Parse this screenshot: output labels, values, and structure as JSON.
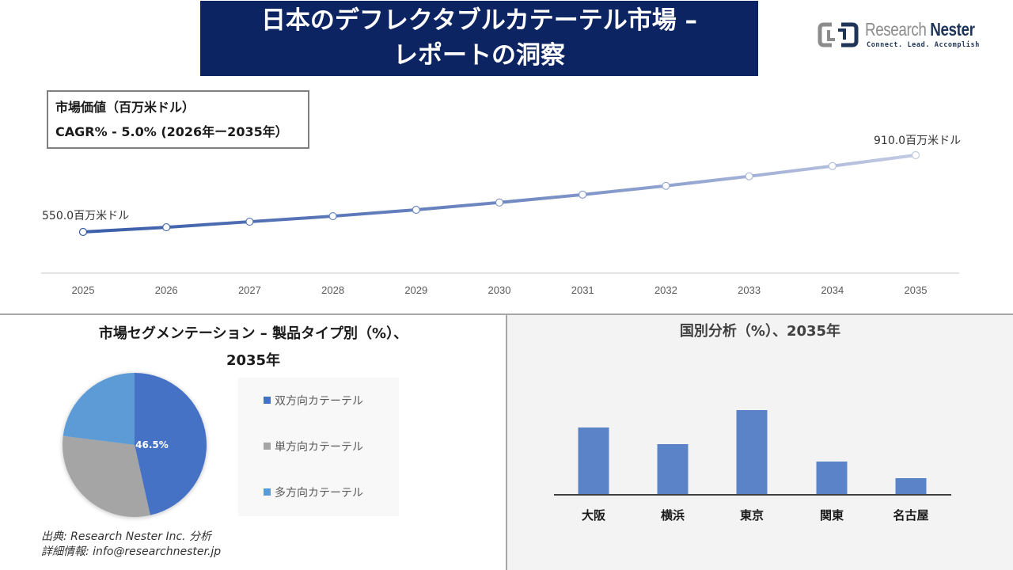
{
  "header": {
    "title_line1": "日本のデフレクタブルカテーテル市場 –",
    "title_line2": "レポートの洞察"
  },
  "logo": {
    "name_part1": "Research",
    "name_part2": "Nester",
    "tagline": "Connect. Lead. Accomplish"
  },
  "info_box": {
    "line1": "市場価値（百万米ドル）",
    "line2": "CAGR% - 5.0% (2026年ー2035年）"
  },
  "segment_section": {
    "title_line1": "市場セグメンテーション – 製品タイプ別（%）、",
    "title_line2": "2035年"
  },
  "country_section": {
    "title": "国別分析（%）、2035年"
  },
  "source": {
    "line1": "出典: Research Nester Inc. 分析",
    "line2": "詳細情報: info@researchnester.jp"
  },
  "colors": {
    "banner": "#0c2461",
    "line_start": "#3a5da8",
    "line_end": "#c3cbe3",
    "pie_bidirectional": "#4472c4",
    "pie_unidirectional": "#a5a5a5",
    "pie_multidirectional": "#5b9bd5",
    "bar": "#5b84c8"
  },
  "chart_data": [
    {
      "type": "line",
      "title": "市場価値（百万米ドル）",
      "subtitle": "CAGR% - 5.0% (2026年ー2035年）",
      "x": [
        "2025",
        "2026",
        "2027",
        "2028",
        "2029",
        "2030",
        "2031",
        "2032",
        "2033",
        "2034",
        "2035"
      ],
      "series": [
        {
          "name": "市場価値",
          "values": [
            550.0,
            572,
            598,
            624,
            654,
            688,
            725,
            766,
            811,
            859,
            910.0
          ]
        }
      ],
      "annotations": [
        {
          "x": "2025",
          "label": "550.0百万米ドル"
        },
        {
          "x": "2035",
          "label": "910.0百万米ドル"
        }
      ],
      "xlabel": "",
      "ylabel": "",
      "grid": false,
      "y_axis_visible": false
    },
    {
      "type": "pie",
      "title": "市場セグメンテーション – 製品タイプ別（%）、2035年",
      "categories": [
        "双方向カテーテル",
        "単方向カテーテル",
        "多方向カテーテル"
      ],
      "values": [
        46.5,
        30.5,
        23.0
      ],
      "data_labels": [
        "46.5%",
        "",
        ""
      ],
      "legend_position": "right"
    },
    {
      "type": "bar",
      "title": "国別分析（%）、2035年",
      "categories": [
        "大阪",
        "横浜",
        "東京",
        "関東",
        "名古屋"
      ],
      "values": [
        84,
        63,
        106,
        41,
        20
      ],
      "value_note": "relative bar heights (no axis shown)",
      "grid": false,
      "y_axis_visible": false
    }
  ]
}
